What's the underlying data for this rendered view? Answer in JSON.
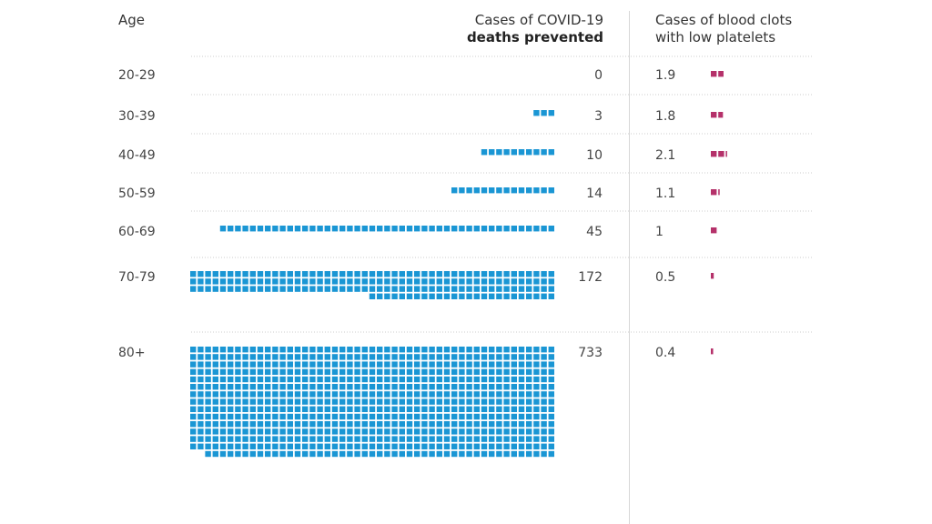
{
  "chart_data": {
    "type": "table",
    "headers": {
      "age": "Age",
      "deaths_line1": "Cases of COVID-19",
      "deaths_line2": "deaths prevented",
      "clots_line1": "Cases of blood clots",
      "clots_line2": "with low platelets"
    },
    "rows": [
      {
        "age": "20-29",
        "deaths_prevented": 0,
        "deaths_label": "0",
        "blood_clots": 1.9,
        "clots_label": "1.9"
      },
      {
        "age": "30-39",
        "deaths_prevented": 3,
        "deaths_label": "3",
        "blood_clots": 1.8,
        "clots_label": "1.8"
      },
      {
        "age": "40-49",
        "deaths_prevented": 10,
        "deaths_label": "10",
        "blood_clots": 2.1,
        "clots_label": "2.1"
      },
      {
        "age": "50-59",
        "deaths_prevented": 14,
        "deaths_label": "14",
        "blood_clots": 1.1,
        "clots_label": "1.1"
      },
      {
        "age": "60-69",
        "deaths_prevented": 45,
        "deaths_label": "45",
        "blood_clots": 1.0,
        "clots_label": "1"
      },
      {
        "age": "70-79",
        "deaths_prevented": 172,
        "deaths_label": "172",
        "blood_clots": 0.5,
        "clots_label": "0.5"
      },
      {
        "age": "80+",
        "deaths_prevented": 733,
        "deaths_label": "733",
        "blood_clots": 0.4,
        "clots_label": "0.4"
      }
    ],
    "colors": {
      "deaths": "#1a96d4",
      "clots": "#b5316a",
      "divider": "#cccccc"
    }
  }
}
